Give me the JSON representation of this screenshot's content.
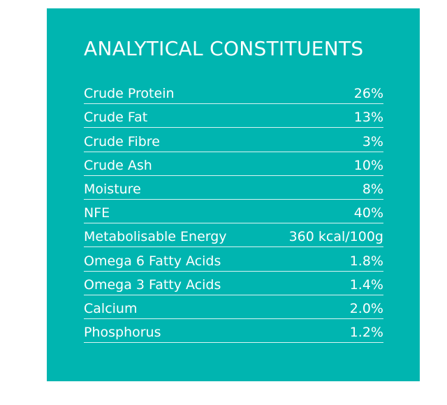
{
  "panel": {
    "title": "ANALYTICAL CONSTITUENTS",
    "background_color": "#00b5b0"
  },
  "constituents": [
    {
      "name": "Crude Protein",
      "value": "26%"
    },
    {
      "name": "Crude Fat",
      "value": "13%"
    },
    {
      "name": "Crude Fibre",
      "value": "3%"
    },
    {
      "name": "Crude Ash",
      "value": "10%"
    },
    {
      "name": "Moisture",
      "value": "8%"
    },
    {
      "name": "NFE",
      "value": "40%"
    },
    {
      "name": "Metabolisable Energy",
      "value": "360 kcal/100g"
    },
    {
      "name": "Omega 6 Fatty Acids",
      "value": "1.8%"
    },
    {
      "name": "Omega 3 Fatty Acids",
      "value": "1.4%"
    },
    {
      "name": "Calcium",
      "value": "2.0%"
    },
    {
      "name": "Phosphorus",
      "value": "1.2%"
    }
  ]
}
